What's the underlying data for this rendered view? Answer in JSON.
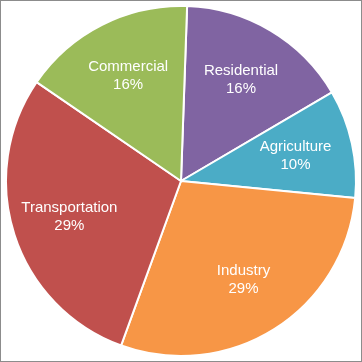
{
  "chart_data": {
    "type": "pie",
    "categories": [
      "Residential",
      "Agriculture",
      "Industry",
      "Transportation",
      "Commercial"
    ],
    "values": [
      16,
      10,
      29,
      29,
      16
    ],
    "value_labels": [
      "16%",
      "10%",
      "29%",
      "29%",
      "16%"
    ],
    "colors": [
      "#8064a2",
      "#4bacc6",
      "#f79646",
      "#c0504d",
      "#9bbb59"
    ],
    "data_labels": true
  }
}
